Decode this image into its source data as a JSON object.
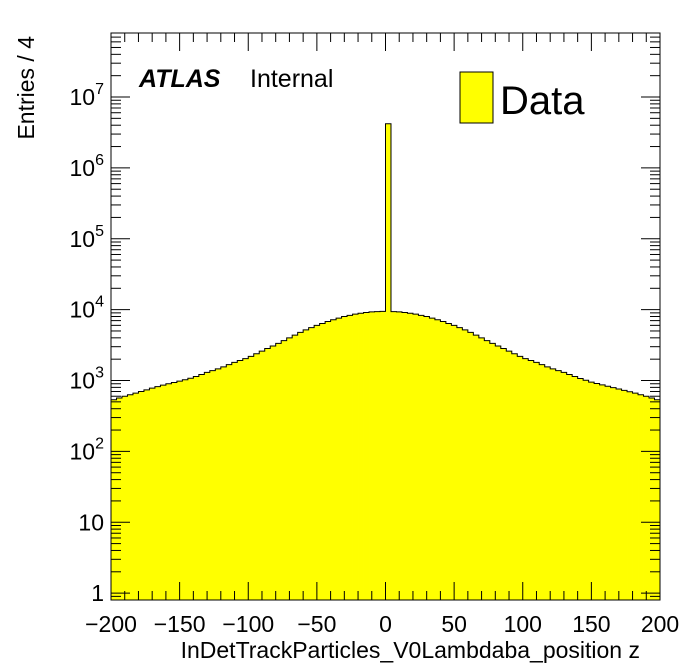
{
  "chart_data": {
    "type": "histogram",
    "xlabel": "InDetTrackParticles_V0Lambdaba_position z",
    "ylabel": "Entries / 4",
    "xlim": [
      -200,
      200
    ],
    "ylim": [
      0.8,
      80000000
    ],
    "ylog": true,
    "bin_width": 4,
    "fill_color": "#ffff00",
    "line_color": "#000000",
    "atlas_label": "ATLAS",
    "atlas_sublabel": "Internal",
    "legend": [
      {
        "label": "Data",
        "color": "#ffff00"
      }
    ],
    "legend_position": "top-right",
    "x_ticks": [
      -200,
      -150,
      -100,
      -50,
      0,
      50,
      100,
      150,
      200
    ],
    "x_tick_labels": [
      "−200",
      "−150",
      "−100",
      "−50",
      "0",
      "50",
      "100",
      "150",
      "200"
    ],
    "y_ticks": [
      {
        "value": 1,
        "base": "1",
        "exp": ""
      },
      {
        "value": 10,
        "base": "10",
        "exp": ""
      },
      {
        "value": 100,
        "base": "10",
        "exp": "2"
      },
      {
        "value": 1000,
        "base": "10",
        "exp": "3"
      },
      {
        "value": 10000,
        "base": "10",
        "exp": "4"
      },
      {
        "value": 100000,
        "base": "10",
        "exp": "5"
      },
      {
        "value": 1000000,
        "base": "10",
        "exp": "6"
      },
      {
        "value": 10000000,
        "base": "10",
        "exp": "7"
      }
    ],
    "profile": [
      [
        -200,
        520
      ],
      [
        -190,
        600
      ],
      [
        -180,
        680
      ],
      [
        -170,
        780
      ],
      [
        -160,
        880
      ],
      [
        -150,
        980
      ],
      [
        -140,
        1100
      ],
      [
        -130,
        1300
      ],
      [
        -120,
        1500
      ],
      [
        -110,
        1800
      ],
      [
        -100,
        2100
      ],
      [
        -90,
        2600
      ],
      [
        -80,
        3200
      ],
      [
        -70,
        4000
      ],
      [
        -60,
        5000
      ],
      [
        -50,
        6000
      ],
      [
        -40,
        7000
      ],
      [
        -30,
        8000
      ],
      [
        -20,
        8800
      ],
      [
        -10,
        9300
      ],
      [
        0,
        9500
      ],
      [
        10,
        9300
      ],
      [
        20,
        8800
      ],
      [
        30,
        8000
      ],
      [
        40,
        7000
      ],
      [
        50,
        6000
      ],
      [
        60,
        5000
      ],
      [
        70,
        4000
      ],
      [
        80,
        3200
      ],
      [
        90,
        2600
      ],
      [
        100,
        2100
      ],
      [
        110,
        1800
      ],
      [
        120,
        1500
      ],
      [
        130,
        1300
      ],
      [
        140,
        1100
      ],
      [
        150,
        950
      ],
      [
        160,
        850
      ],
      [
        170,
        760
      ],
      [
        180,
        680
      ],
      [
        190,
        600
      ],
      [
        200,
        520
      ]
    ],
    "spike": {
      "bin_low": 0,
      "bin_high": 4,
      "value": 4200000
    }
  }
}
